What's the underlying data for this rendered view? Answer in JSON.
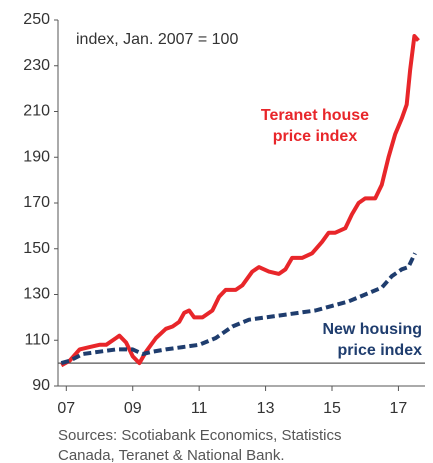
{
  "chart_data": {
    "type": "line",
    "subtitle": "index, Jan. 2007 = 100",
    "ylim": [
      90,
      250
    ],
    "yticks": [
      90,
      110,
      130,
      150,
      170,
      190,
      210,
      230,
      250
    ],
    "xlim": [
      2006.75,
      2017.8
    ],
    "xticks": [
      {
        "value": 2007,
        "label": "07"
      },
      {
        "value": 2009,
        "label": "09"
      },
      {
        "value": 2011,
        "label": "11"
      },
      {
        "value": 2013,
        "label": "13"
      },
      {
        "value": 2015,
        "label": "15"
      },
      {
        "value": 2017,
        "label": "17"
      }
    ],
    "reference_line": 100,
    "series": [
      {
        "name": [
          "Teranet house",
          "price index"
        ],
        "color": "#e8262a",
        "dashed": false,
        "x": [
          2006.85,
          2007.1,
          2007.4,
          2007.7,
          2008.0,
          2008.2,
          2008.5,
          2008.6,
          2008.8,
          2009.0,
          2009.2,
          2009.4,
          2009.7,
          2010.0,
          2010.2,
          2010.4,
          2010.55,
          2010.7,
          2010.85,
          2011.1,
          2011.4,
          2011.6,
          2011.8,
          2012.1,
          2012.3,
          2012.6,
          2012.8,
          2013.1,
          2013.4,
          2013.6,
          2013.8,
          2014.1,
          2014.4,
          2014.7,
          2014.9,
          2015.1,
          2015.4,
          2015.6,
          2015.8,
          2016.0,
          2016.3,
          2016.5,
          2016.7,
          2016.9,
          2017.1,
          2017.25,
          2017.35,
          2017.48,
          2017.6
        ],
        "values": [
          99,
          101,
          106,
          107,
          108,
          108,
          111,
          112,
          109,
          103,
          100,
          105,
          111,
          115,
          116,
          118,
          122,
          123,
          120,
          120,
          123,
          129,
          132,
          132,
          134,
          140,
          142,
          140,
          139,
          141,
          146,
          146,
          148,
          153,
          157,
          157,
          159,
          165,
          170,
          172,
          172,
          178,
          190,
          200,
          207,
          213,
          228,
          243,
          241
        ]
      },
      {
        "name": [
          "New housing",
          "price index"
        ],
        "color": "#1f3d6e",
        "dashed": true,
        "x": [
          2006.85,
          2007.1,
          2007.5,
          2008.0,
          2008.5,
          2009.0,
          2009.3,
          2009.6,
          2010.0,
          2010.5,
          2011.0,
          2011.5,
          2012.0,
          2012.5,
          2013.0,
          2013.5,
          2014.0,
          2014.5,
          2015.0,
          2015.5,
          2016.0,
          2016.5,
          2016.8,
          2017.1,
          2017.3,
          2017.5
        ],
        "values": [
          100,
          101,
          104,
          105,
          106,
          106,
          104,
          105,
          106,
          107,
          108,
          111,
          116,
          119,
          120,
          121,
          122,
          123,
          125,
          127,
          130,
          133,
          138,
          141,
          142,
          148
        ]
      }
    ],
    "source": [
      "Sources: Scotiabank Economics, Statistics",
      "Canada, Teranet & National Bank."
    ]
  }
}
